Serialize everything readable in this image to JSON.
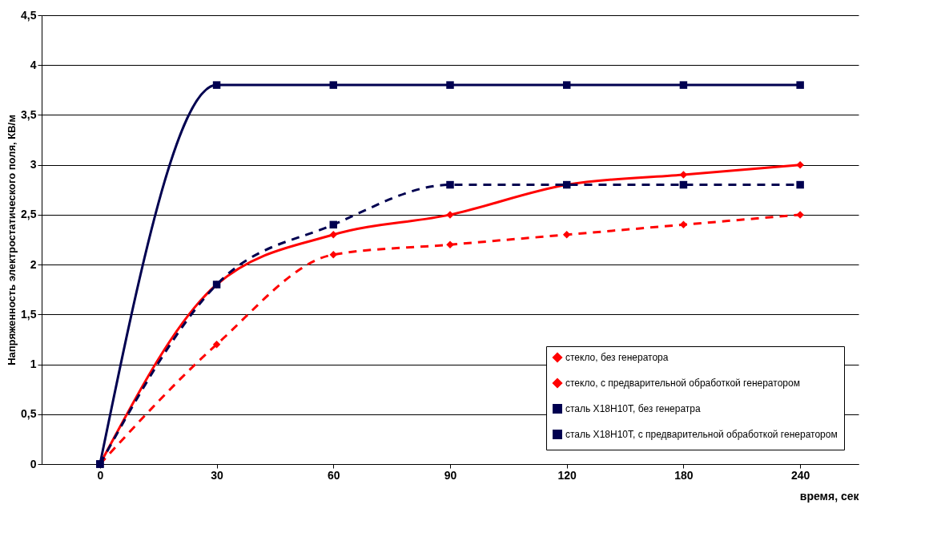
{
  "chart_data": {
    "type": "line",
    "xlabel": "время, сек",
    "ylabel": "Напряженность электростатического поля, КВ/м",
    "categories": [
      "0",
      "30",
      "60",
      "90",
      "120",
      "180",
      "240"
    ],
    "ylim": [
      0,
      4.5
    ],
    "yticks": [
      0,
      {
        "value": 0.5,
        "label": "0,5"
      },
      1,
      {
        "value": 1.5,
        "label": "1,5"
      },
      2,
      {
        "value": 2.5,
        "label": "2,5"
      },
      3,
      {
        "value": 3.5,
        "label": "3,5"
      },
      4,
      {
        "value": 4.5,
        "label": "4,5"
      }
    ],
    "grid": "y",
    "legend": "bottom right",
    "series": [
      {
        "name": "стекло, без генератора",
        "color": "#ff0000",
        "marker": "diamond",
        "line_style": "solid",
        "values": [
          0,
          1.8,
          2.3,
          2.5,
          2.8,
          2.9,
          3.0
        ]
      },
      {
        "name": "стекло, с предварительной обработкой генератором",
        "color": "#ff0000",
        "marker": "diamond",
        "line_style": "dashed",
        "values": [
          0,
          1.2,
          2.1,
          2.2,
          2.3,
          2.4,
          2.5
        ]
      },
      {
        "name": "сталь Х18Н10Т, без генератра",
        "color": "#000050",
        "marker": "square",
        "line_style": "solid",
        "values": [
          0,
          3.8,
          3.8,
          3.8,
          3.8,
          3.8,
          3.8
        ]
      },
      {
        "name": "сталь Х18Н10Т, с предварительной обработкой генератором",
        "color": "#000050",
        "marker": "square",
        "line_style": "dashed",
        "values": [
          0,
          1.8,
          2.4,
          2.8,
          2.8,
          2.8,
          2.8
        ]
      }
    ]
  }
}
